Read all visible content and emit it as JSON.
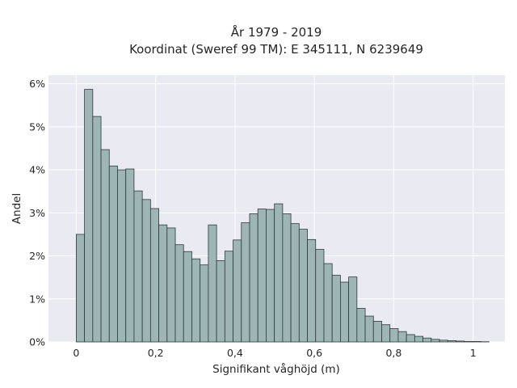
{
  "chart_data": {
    "type": "bar",
    "title_line1": "År 1979 - 2019",
    "title_line2": "Koordinat (Sweref 99 TM): E 345111, N 6239649",
    "xlabel": "Signifikant våghöjd (m)",
    "ylabel": "Andel",
    "xlim": [
      -0.07,
      1.08
    ],
    "ylim": [
      0,
      6.2
    ],
    "xticks": [
      0,
      0.2,
      0.4,
      0.6,
      0.8,
      1.0
    ],
    "xtick_labels": [
      "0",
      "0,2",
      "0,4",
      "0,6",
      "0,8",
      "1"
    ],
    "yticks": [
      0,
      1,
      2,
      3,
      4,
      5,
      6
    ],
    "ytick_labels": [
      "0%",
      "1%",
      "2%",
      "3%",
      "4%",
      "5%",
      "6%"
    ],
    "grid": true,
    "bin_width": 0.0208,
    "bin_start": 0.0,
    "values": [
      2.5,
      5.87,
      5.24,
      4.47,
      4.09,
      4.0,
      4.02,
      3.51,
      3.31,
      3.1,
      2.72,
      2.65,
      2.26,
      2.1,
      1.93,
      1.79,
      2.72,
      1.89,
      2.11,
      2.37,
      2.77,
      2.98,
      3.09,
      3.08,
      3.21,
      2.98,
      2.75,
      2.62,
      2.38,
      2.15,
      1.82,
      1.55,
      1.39,
      1.51,
      0.78,
      0.6,
      0.48,
      0.4,
      0.31,
      0.24,
      0.17,
      0.13,
      0.09,
      0.06,
      0.04,
      0.03,
      0.02,
      0.01,
      0.01,
      0.005
    ],
    "colors": {
      "bar_fill": "#9db5b5",
      "bar_edge": "#2e3a3a",
      "plot_bg": "#eaeaf2",
      "grid": "#ffffff",
      "text": "#262626"
    }
  }
}
